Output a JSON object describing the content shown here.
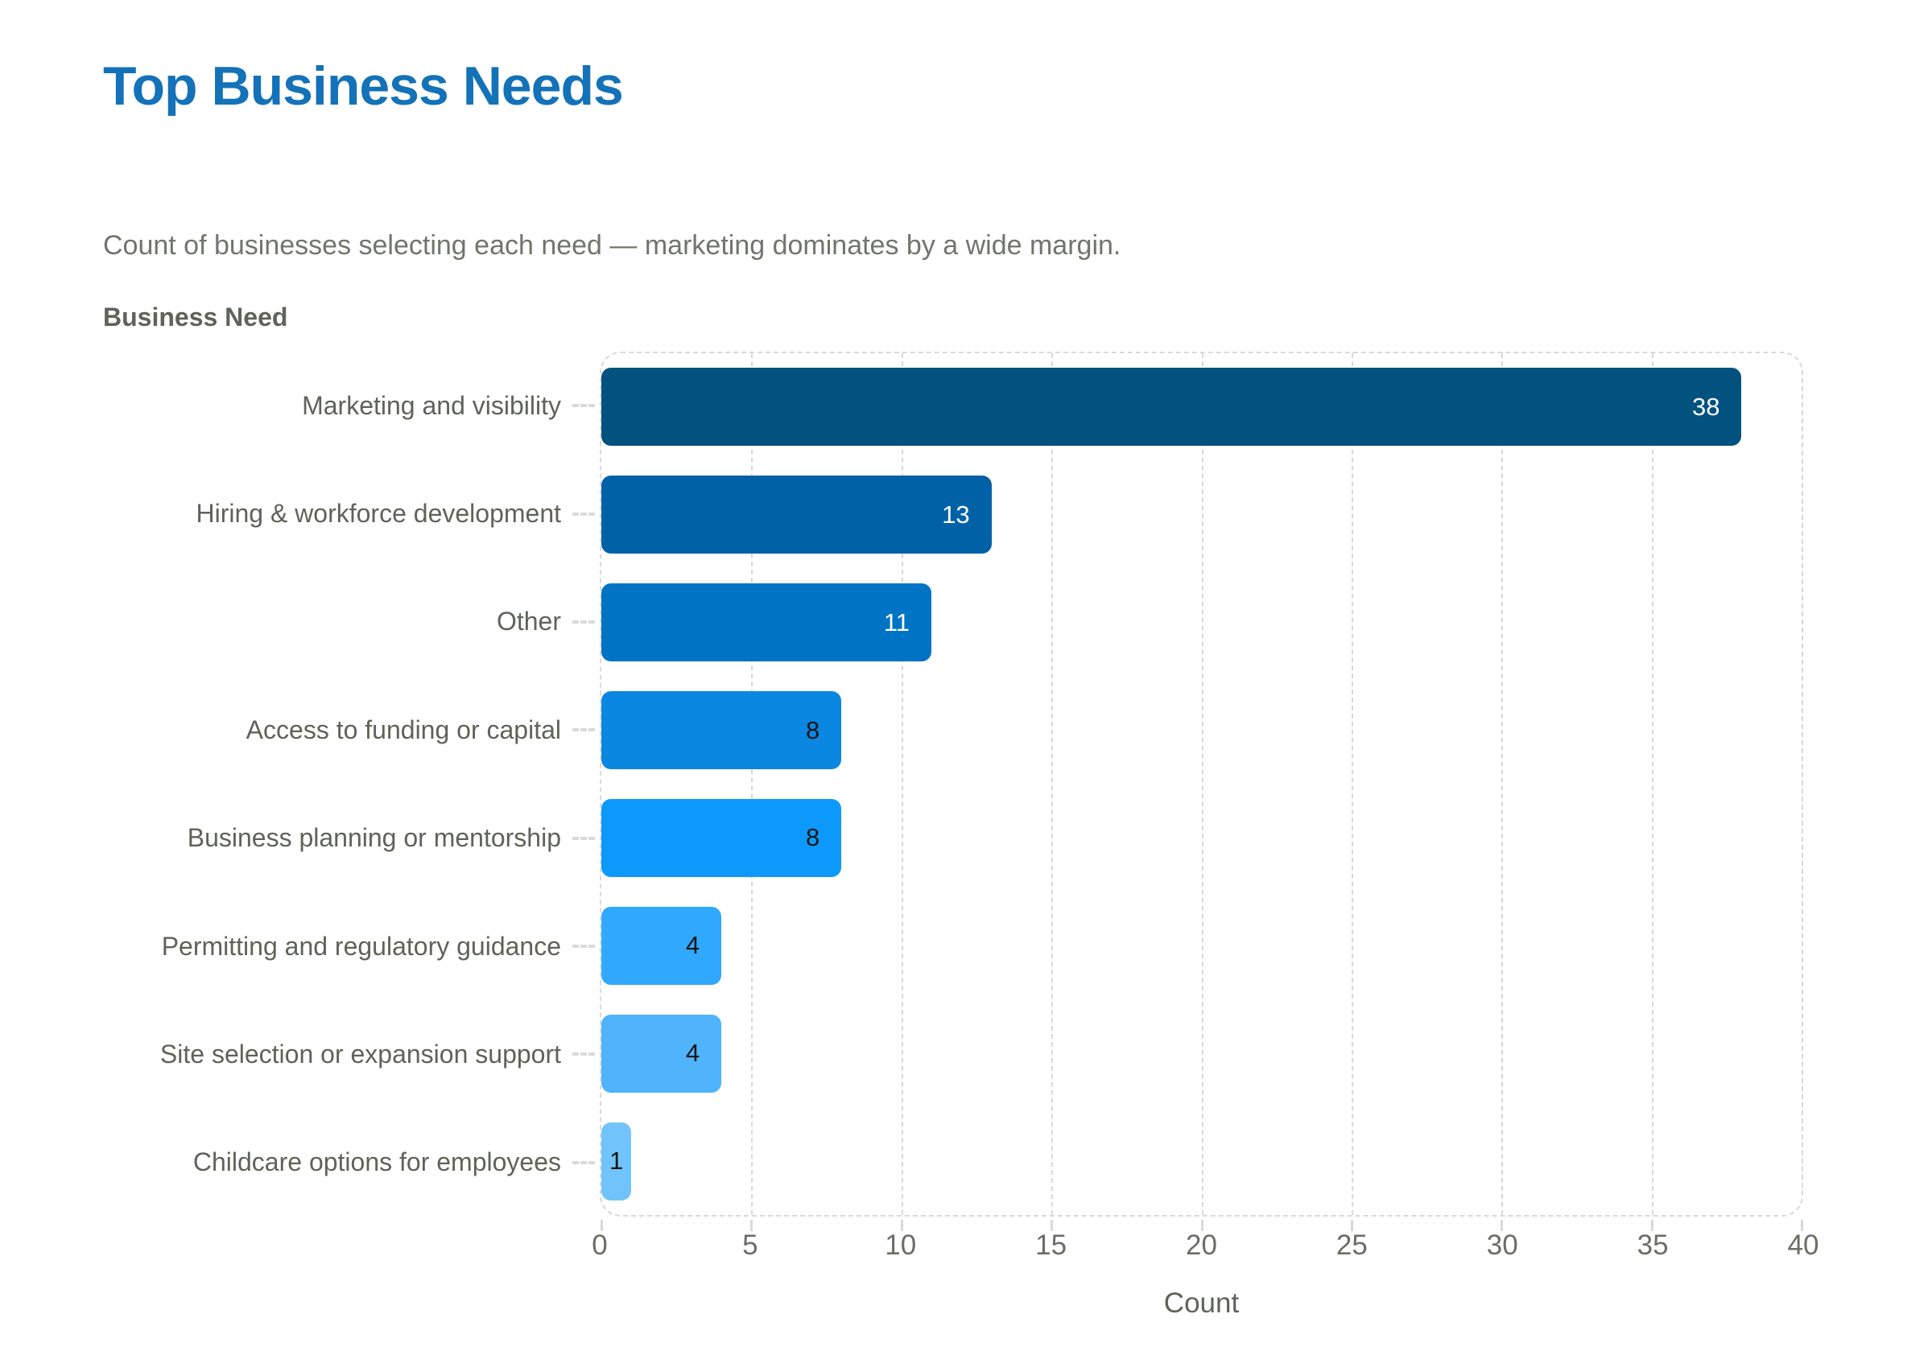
{
  "header": {
    "title": "Top Business Needs",
    "subtitle": "Count of businesses selecting each need — marketing dominates by a wide margin."
  },
  "chart_data": {
    "type": "bar",
    "orientation": "horizontal",
    "title": "Top Business Needs",
    "subtitle": "Count of businesses selecting each need — marketing dominates by a wide margin.",
    "xlabel": "Count",
    "ylabel": "Business Need",
    "xlim": [
      0,
      40
    ],
    "x_ticks": [
      "0",
      "5",
      "10",
      "15",
      "20",
      "25",
      "30",
      "35",
      "40"
    ],
    "grid": "vertical dashed gridlines, dashed rounded plot border",
    "legend": "none",
    "categories": [
      "Marketing and visibility",
      "Hiring & workforce development",
      "Other",
      "Access to funding or capital",
      "Business planning or mentorship",
      "Permitting and regulatory guidance",
      "Site selection or expansion support",
      "Childcare options for employees"
    ],
    "values": [
      38,
      13,
      11,
      8,
      8,
      4,
      4,
      1
    ],
    "bar_colors": [
      "#02527f",
      "#0061a7",
      "#0074c4",
      "#0a87e0",
      "#0d99fc",
      "#30a8fd",
      "#4fb4fc",
      "#70c4fb"
    ],
    "value_label_colors": [
      "#ffffff",
      "#ffffff",
      "#ffffff",
      "#141414",
      "#141414",
      "#141414",
      "#141414",
      "#141414"
    ]
  },
  "style": {
    "title_color": "#1372b8",
    "subtitle_color": "#71756b",
    "text_color": "#5f6358",
    "tick_color": "#6a6e64",
    "grid_color": "#d9d9d9"
  }
}
